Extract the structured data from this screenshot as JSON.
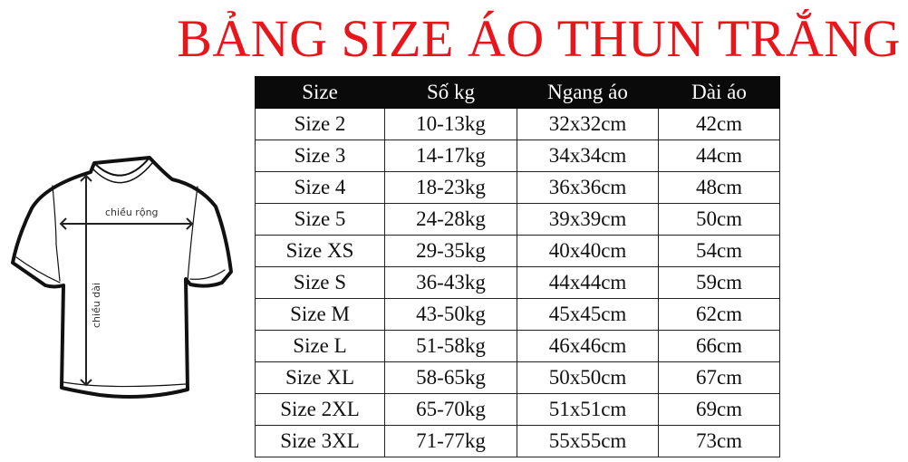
{
  "title": "BẢNG SIZE ÁO THUN TRẮNG",
  "diagram": {
    "width_label": "chiều rộng",
    "length_label": "chiều dài"
  },
  "table": {
    "headers": [
      "Size",
      "Số kg",
      "Ngang áo",
      "Dài áo"
    ],
    "rows": [
      [
        "Size 2",
        "10-13kg",
        "32x32cm",
        "42cm"
      ],
      [
        "Size 3",
        "14-17kg",
        "34x34cm",
        "44cm"
      ],
      [
        "Size 4",
        "18-23kg",
        "36x36cm",
        "48cm"
      ],
      [
        "Size 5",
        "24-28kg",
        "39x39cm",
        "50cm"
      ],
      [
        "Size XS",
        "29-35kg",
        "40x40cm",
        "54cm"
      ],
      [
        "Size S",
        "36-43kg",
        "44x44cm",
        "59cm"
      ],
      [
        "Size M",
        "43-50kg",
        "45x45cm",
        "62cm"
      ],
      [
        "Size L",
        "51-58kg",
        "46x46cm",
        "66cm"
      ],
      [
        "Size XL",
        "58-65kg",
        "50x50cm",
        "67cm"
      ],
      [
        "Size 2XL",
        "65-70kg",
        "51x51cm",
        "69cm"
      ],
      [
        "Size 3XL",
        "71-77kg",
        "55x55cm",
        "73cm"
      ]
    ]
  }
}
